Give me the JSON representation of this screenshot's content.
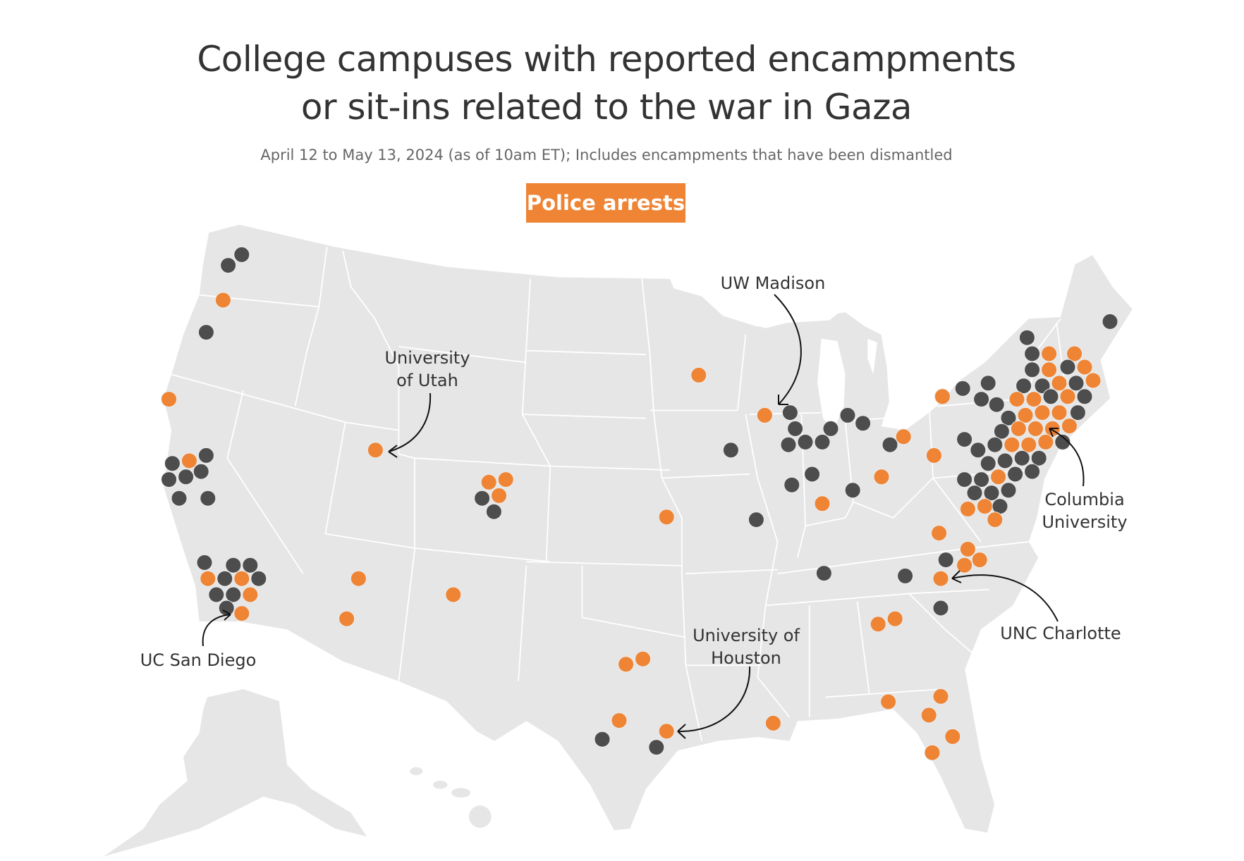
{
  "header": {
    "title_lines": [
      "College campuses with reported encampments",
      "or sit-ins related to the war in Gaza"
    ],
    "subtitle": "April 12 to May 13, 2024 (as of 10am ET); Includes encampments that have been dismantled"
  },
  "legend": {
    "label": "Police arrests",
    "arrest_color": "#ee8434",
    "no_arrest_color": "#4d4d4d"
  },
  "colors": {
    "land": "#e6e6e6",
    "borders": "#ffffff"
  },
  "annotations": [
    {
      "id": "uw-madison",
      "lines": [
        "UW Madison"
      ]
    },
    {
      "id": "university-of-utah",
      "lines": [
        "University",
        "of Utah"
      ]
    },
    {
      "id": "columbia-university",
      "lines": [
        "Columbia",
        "University"
      ]
    },
    {
      "id": "unc-charlotte",
      "lines": [
        "UNC Charlotte"
      ]
    },
    {
      "id": "university-of-houston",
      "lines": [
        "University of",
        "Houston"
      ]
    },
    {
      "id": "uc-san-diego",
      "lines": [
        "UC San Diego"
      ]
    }
  ],
  "markers": [
    [
      -122.3,
      47.7,
      0
    ],
    [
      -123.1,
      47.3,
      0
    ],
    [
      -123.4,
      46.0,
      1
    ],
    [
      -124.4,
      44.8,
      0
    ],
    [
      -126.6,
      42.3,
      1
    ],
    [
      -126.4,
      39.9,
      0
    ],
    [
      -125.4,
      40.0,
      1
    ],
    [
      -124.4,
      40.2,
      0
    ],
    [
      -126.6,
      39.3,
      0
    ],
    [
      -125.6,
      39.4,
      0
    ],
    [
      -124.7,
      39.6,
      0
    ],
    [
      -126.0,
      38.6,
      0
    ],
    [
      -124.3,
      38.6,
      0
    ],
    [
      -124.5,
      36.2,
      0
    ],
    [
      -122.8,
      36.1,
      0
    ],
    [
      -121.8,
      36.1,
      0
    ],
    [
      -124.3,
      35.6,
      1
    ],
    [
      -123.3,
      35.6,
      0
    ],
    [
      -122.3,
      35.6,
      1
    ],
    [
      -121.3,
      35.6,
      0
    ],
    [
      -123.8,
      35.0,
      0
    ],
    [
      -122.8,
      35.0,
      0
    ],
    [
      -121.8,
      35.0,
      1
    ],
    [
      -123.2,
      34.5,
      0
    ],
    [
      -122.3,
      34.3,
      1
    ],
    [
      -114.4,
      40.4,
      1
    ],
    [
      -115.4,
      35.6,
      1
    ],
    [
      -116.1,
      34.1,
      1
    ],
    [
      -109.8,
      35.0,
      1
    ],
    [
      -107.7,
      39.2,
      1
    ],
    [
      -106.7,
      39.3,
      1
    ],
    [
      -108.1,
      38.6,
      0
    ],
    [
      -107.1,
      38.7,
      1
    ],
    [
      -107.4,
      38.1,
      0
    ],
    [
      -97.2,
      37.9,
      1
    ],
    [
      -95.3,
      43.2,
      1
    ],
    [
      -91.4,
      41.7,
      1
    ],
    [
      -93.4,
      40.4,
      0
    ],
    [
      -91.9,
      37.8,
      0
    ],
    [
      -89.9,
      41.8,
      0
    ],
    [
      -89.6,
      41.2,
      0
    ],
    [
      -90.0,
      40.6,
      0
    ],
    [
      -89.0,
      40.7,
      0
    ],
    [
      -88.0,
      40.7,
      0
    ],
    [
      -87.5,
      41.2,
      0
    ],
    [
      -86.5,
      41.7,
      0
    ],
    [
      -85.6,
      41.4,
      0
    ],
    [
      -88.6,
      39.5,
      0
    ],
    [
      -89.8,
      39.1,
      0
    ],
    [
      -88.0,
      38.4,
      1
    ],
    [
      -86.2,
      38.9,
      0
    ],
    [
      -84.0,
      40.6,
      0
    ],
    [
      -83.2,
      40.9,
      1
    ],
    [
      -84.5,
      39.4,
      1
    ],
    [
      -80.9,
      42.4,
      1
    ],
    [
      -81.4,
      40.2,
      1
    ],
    [
      -71.0,
      45.2,
      0
    ],
    [
      -75.9,
      44.6,
      0
    ],
    [
      -75.6,
      44.0,
      0
    ],
    [
      -74.6,
      44.0,
      1
    ],
    [
      -73.1,
      44.0,
      1
    ],
    [
      -75.6,
      43.4,
      0
    ],
    [
      -74.6,
      43.4,
      1
    ],
    [
      -73.5,
      43.5,
      0
    ],
    [
      -72.5,
      43.5,
      1
    ],
    [
      -79.7,
      42.7,
      0
    ],
    [
      -78.2,
      42.9,
      0
    ],
    [
      -76.1,
      42.8,
      0
    ],
    [
      -75.0,
      42.8,
      0
    ],
    [
      -74.0,
      42.9,
      1
    ],
    [
      -73.0,
      42.9,
      0
    ],
    [
      -72.0,
      43.0,
      1
    ],
    [
      -78.6,
      42.3,
      0
    ],
    [
      -76.5,
      42.3,
      1
    ],
    [
      -75.5,
      42.3,
      1
    ],
    [
      -74.5,
      42.4,
      0
    ],
    [
      -73.5,
      42.4,
      1
    ],
    [
      -72.5,
      42.4,
      0
    ],
    [
      -77.7,
      42.1,
      0
    ],
    [
      -77.0,
      41.6,
      0
    ],
    [
      -76.0,
      41.7,
      1
    ],
    [
      -75.0,
      41.8,
      1
    ],
    [
      -74.0,
      41.8,
      1
    ],
    [
      -72.9,
      41.8,
      0
    ],
    [
      -77.4,
      41.1,
      0
    ],
    [
      -76.4,
      41.2,
      1
    ],
    [
      -75.4,
      41.2,
      1
    ],
    [
      -74.4,
      41.2,
      1
    ],
    [
      -73.4,
      41.3,
      1
    ],
    [
      -79.6,
      40.8,
      0
    ],
    [
      -78.8,
      40.4,
      0
    ],
    [
      -77.8,
      40.6,
      0
    ],
    [
      -76.8,
      40.6,
      1
    ],
    [
      -75.8,
      40.6,
      1
    ],
    [
      -74.8,
      40.7,
      1
    ],
    [
      -73.8,
      40.7,
      0
    ],
    [
      -78.2,
      39.9,
      0
    ],
    [
      -77.2,
      40.0,
      0
    ],
    [
      -76.2,
      40.1,
      0
    ],
    [
      -75.2,
      40.1,
      0
    ],
    [
      -79.6,
      39.3,
      0
    ],
    [
      -78.6,
      39.3,
      0
    ],
    [
      -77.6,
      39.4,
      1
    ],
    [
      -76.6,
      39.5,
      0
    ],
    [
      -75.6,
      39.6,
      0
    ],
    [
      -79.0,
      38.8,
      0
    ],
    [
      -78.0,
      38.8,
      0
    ],
    [
      -77.0,
      38.9,
      0
    ],
    [
      -79.4,
      38.2,
      1
    ],
    [
      -78.4,
      38.3,
      1
    ],
    [
      -77.5,
      38.3,
      0
    ],
    [
      -77.8,
      37.8,
      1
    ],
    [
      -81.1,
      37.3,
      1
    ],
    [
      -79.4,
      36.7,
      1
    ],
    [
      -80.7,
      36.3,
      0
    ],
    [
      -79.6,
      36.1,
      1
    ],
    [
      -78.7,
      36.3,
      1
    ],
    [
      -81.0,
      35.6,
      1
    ],
    [
      -87.9,
      35.8,
      0
    ],
    [
      -83.1,
      35.7,
      0
    ],
    [
      -81.0,
      34.5,
      0
    ],
    [
      -84.7,
      33.9,
      1
    ],
    [
      -83.7,
      34.1,
      1
    ],
    [
      -84.1,
      31.0,
      1
    ],
    [
      -81.0,
      31.2,
      1
    ],
    [
      -81.7,
      30.5,
      1
    ],
    [
      -80.3,
      29.7,
      1
    ],
    [
      -81.5,
      29.1,
      1
    ],
    [
      -99.6,
      32.4,
      1
    ],
    [
      -98.6,
      32.6,
      1
    ],
    [
      -100.0,
      30.3,
      1
    ],
    [
      -101.0,
      29.6,
      0
    ],
    [
      -97.2,
      29.9,
      1
    ],
    [
      -97.8,
      29.3,
      0
    ],
    [
      -90.9,
      30.2,
      1
    ]
  ]
}
